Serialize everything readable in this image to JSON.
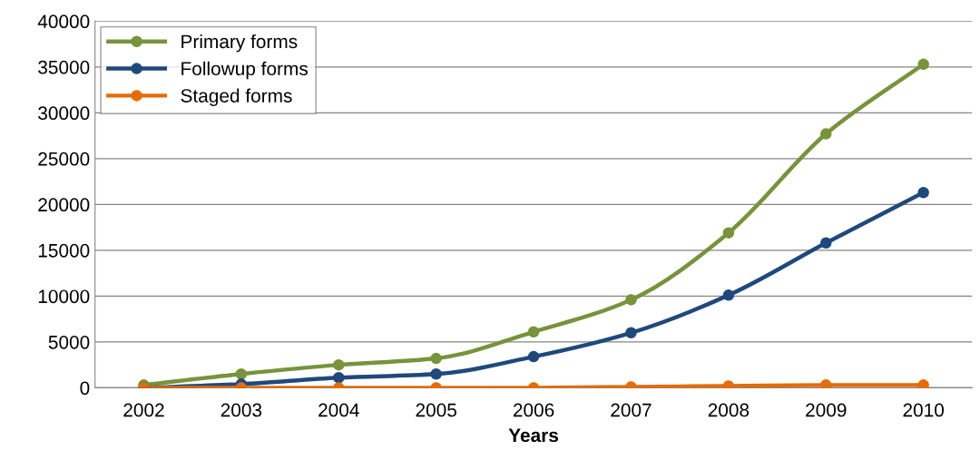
{
  "chart_data": {
    "type": "line",
    "xlabel": "Years",
    "categories": [
      "2002",
      "2003",
      "2004",
      "2005",
      "2006",
      "2007",
      "2008",
      "2009",
      "2010"
    ],
    "series": [
      {
        "name": "Primary forms",
        "color": "#77933c",
        "values": [
          300,
          1500,
          2500,
          3200,
          6100,
          9600,
          16900,
          27700,
          35300
        ]
      },
      {
        "name": "Followup forms",
        "color": "#1f497d",
        "values": [
          0,
          400,
          1100,
          1500,
          3400,
          6000,
          10100,
          15800,
          21300
        ]
      },
      {
        "name": "Staged forms",
        "color": "#e46c0a",
        "values": [
          0,
          0,
          0,
          0,
          0,
          100,
          200,
          300,
          300
        ]
      }
    ],
    "ylim": [
      0,
      40000
    ],
    "yticks": [
      0,
      5000,
      10000,
      15000,
      20000,
      25000,
      30000,
      35000,
      40000
    ],
    "grid": "y",
    "legend": "top left",
    "marker": "circle",
    "line_style": "solid"
  }
}
